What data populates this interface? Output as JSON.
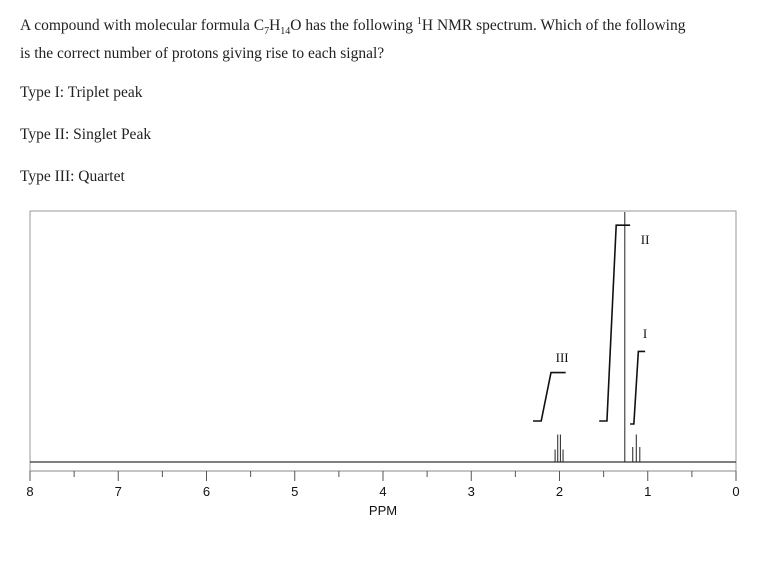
{
  "question": {
    "line1_prefix": "A compound with molecular formula C",
    "formula_c_count": "7",
    "formula_h": "H",
    "formula_h_count": "14",
    "formula_o": "O",
    "line1_mid": " has the following ",
    "nucleus_mass": "1",
    "line1_suffix": "H NMR spectrum. Which of the following",
    "line2": "is the correct number of protons giving rise to each signal?"
  },
  "types": [
    "Type I: Triplet peak",
    "Type II: Singlet Peak",
    "Type III: Quartet"
  ],
  "chart_data": {
    "type": "line",
    "title": "",
    "xlabel": "PPM",
    "ylabel": "",
    "xlim": [
      8,
      0
    ],
    "x_reversed": true,
    "xticks": [
      "8",
      "7",
      "6",
      "5",
      "4",
      "3",
      "2",
      "1",
      "0"
    ],
    "grid": false,
    "signal_labels": [
      "I",
      "II",
      "III"
    ],
    "peaks": [
      {
        "label": "III",
        "multiplicity": "quartet",
        "shift_ppm": [
          2.05,
          2.02,
          1.99,
          1.96
        ],
        "height": [
          0.05,
          0.11,
          0.11,
          0.05
        ]
      },
      {
        "label": "II",
        "multiplicity": "singlet",
        "shift_ppm": [
          1.26
        ],
        "height": [
          1.0
        ]
      },
      {
        "label": "I",
        "multiplicity": "triplet",
        "shift_ppm": [
          1.17,
          1.13,
          1.09
        ],
        "height": [
          0.06,
          0.11,
          0.06
        ]
      }
    ],
    "integral_steps": [
      {
        "label": "III",
        "from_ppm": 2.3,
        "to_ppm": 1.93,
        "height": 0.22
      },
      {
        "label": "II",
        "from_ppm": 1.55,
        "to_ppm": 1.2,
        "height": 0.89
      },
      {
        "label": "I",
        "from_ppm": 1.2,
        "to_ppm": 1.03,
        "height": 0.33
      }
    ]
  }
}
